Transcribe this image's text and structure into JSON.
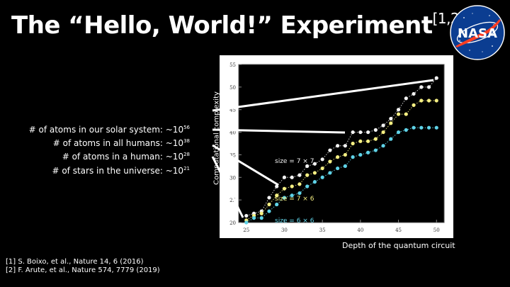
{
  "slide": {
    "title_main": "The “Hello, World!” Experiment",
    "title_sup": "[1,2]",
    "logo_text": "NASA"
  },
  "facts": [
    {
      "text": "# of atoms in our solar system: ~10",
      "exp": "56"
    },
    {
      "text": "# of atoms in all humans: ~10",
      "exp": "38"
    },
    {
      "text": "# of atoms in a human: ~10",
      "exp": "28"
    },
    {
      "text": "# of stars in the universe: ~10",
      "exp": "21"
    }
  ],
  "references": [
    "[1] S. Boixo, et al., Nature 14, 6 (2016)",
    "[2] F. Arute, et al., Nature 574, 7779 (2019)"
  ],
  "colors": {
    "background": "#000000",
    "plot_background": "#ffffff",
    "connector_lines": "#ffffff"
  },
  "chart_data": {
    "type": "scatter",
    "xlabel": "Depth of the quantum circuit",
    "ylabel": "Computational complexity",
    "xlim": [
      24,
      51
    ],
    "ylim": [
      20,
      55
    ],
    "xticks": [
      25,
      30,
      35,
      40,
      45,
      50
    ],
    "yticks": [
      20,
      25,
      30,
      35,
      40,
      45,
      50,
      55
    ],
    "grid": false,
    "series": [
      {
        "name": "size = 7 × 7",
        "color": "#f2f2f2",
        "x": [
          25,
          26,
          27,
          28,
          29,
          30,
          31,
          32,
          33,
          34,
          35,
          36,
          37,
          38,
          39,
          40,
          41,
          42,
          43,
          44,
          45,
          46,
          47,
          48,
          49,
          50
        ],
        "y": [
          21.5,
          22.0,
          22.5,
          25.5,
          28.0,
          30.0,
          30.0,
          30.5,
          32.5,
          33.0,
          34.0,
          36.0,
          37.0,
          37.0,
          40.0,
          40.0,
          40.0,
          40.5,
          41.5,
          43.0,
          45.0,
          47.5,
          48.5,
          50.0,
          50.0,
          52.0
        ]
      },
      {
        "name": "size = 7 × 6",
        "color": "#f5ef82",
        "x": [
          25,
          26,
          27,
          28,
          29,
          30,
          31,
          32,
          33,
          34,
          35,
          36,
          37,
          38,
          39,
          40,
          41,
          42,
          43,
          44,
          45,
          46,
          47,
          48,
          49,
          50
        ],
        "y": [
          20.5,
          21.5,
          22.0,
          24.0,
          26.0,
          27.5,
          28.0,
          28.5,
          30.5,
          31.0,
          32.0,
          33.5,
          34.5,
          35.0,
          37.5,
          38.0,
          38.0,
          38.5,
          40.0,
          42.0,
          44.0,
          44.0,
          46.0,
          47.0,
          47.0,
          47.0
        ]
      },
      {
        "name": "size = 6 × 6",
        "color": "#5fd3e8",
        "x": [
          25,
          26,
          27,
          28,
          29,
          30,
          31,
          32,
          33,
          34,
          35,
          36,
          37,
          38,
          39,
          40,
          41,
          42,
          43,
          44,
          45,
          46,
          47,
          48,
          49,
          50
        ],
        "y": [
          20.0,
          21.0,
          21.0,
          22.5,
          24.0,
          25.5,
          26.0,
          26.5,
          28.0,
          29.0,
          30.0,
          31.0,
          32.0,
          32.5,
          34.5,
          35.0,
          35.5,
          36.0,
          37.0,
          38.5,
          40.0,
          40.5,
          41.0,
          41.0,
          41.0,
          41.0
        ]
      }
    ],
    "annotations": [
      "size = 7 × 7",
      "size = 7 × 6",
      "size = 6 × 6"
    ]
  }
}
